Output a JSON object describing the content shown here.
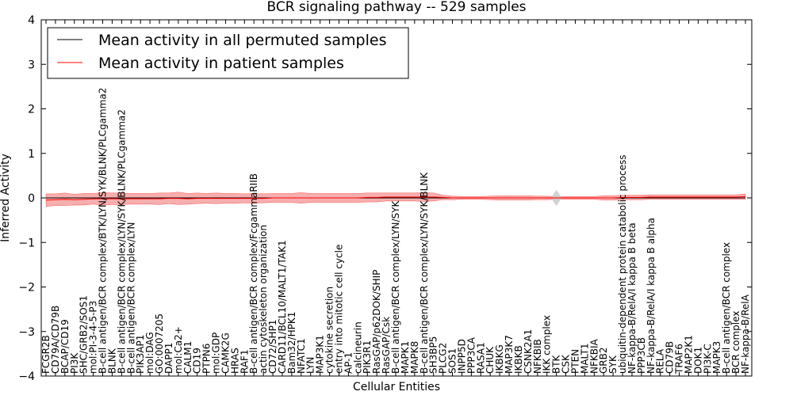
{
  "chart_data": {
    "type": "line",
    "title": "BCR signaling pathway -- 529 samples",
    "xlabel": "Cellular Entities",
    "ylabel": "Inferred Activity",
    "ylim": [
      -4,
      4
    ],
    "yticks": [
      "4",
      "3",
      "2",
      "1",
      "0",
      "−1",
      "−2",
      "−3",
      "−4"
    ],
    "grid": false,
    "legend_position": "top-left",
    "colors": {
      "permuted": "#000000",
      "patient": "#ff0000",
      "patient_band": "#f4a0a0",
      "permuted_band": "#c8c8c8"
    },
    "categories": [
      "FCGR2B",
      "CD79A/CD79B",
      "BCAP/CD19",
      "PI3K",
      "SHC/GRB2/SOS1",
      "mol:PI-3-4-5-P3",
      "B-cell antigen/BCR complex/BTK/LYN/SYK/BLNK/PLCgamma2",
      "BLNK",
      "B-cell antigen/BCR complex/LYN/SYK/BLNK/PLCgamma2",
      "B-cell antigen/BCR complex/LYN",
      "PIK3AP1",
      "mol:DAG",
      "GO:0007205",
      "DAPP1",
      "mol:Ca2+",
      "CALM1",
      "CD19",
      "PTPN6",
      "mol:GDP",
      "CAMK2G",
      "HRAS",
      "RAF1",
      "B-cell antigen/BCR complex/FcgammaRIIB",
      "actin cytoskeleton organization",
      "CD72/SHP1",
      "CARD11/BCL10/MALT1/TAK1",
      "Bam32/HPK1",
      "NFATC1",
      "LYN",
      "MAP3K1",
      "cytokine secretion",
      "entry into mitotic cell cycle",
      "AP-1",
      "calcineurin",
      "PIK3R1",
      "RasGAP/p62DOK/SHIP",
      "RasGAP/Csk",
      "B-cell antigen/BCR complex/LYN/SYK",
      "MAPK1",
      "MAPK8",
      "B-cell antigen/BCR complex/LYN/SYK/BLNK",
      "SH3BP5",
      "PLCG2",
      "SOS1",
      "INPP5D",
      "PPP3CA",
      "RASA1",
      "CHUK",
      "IKBKG",
      "MAP3K7",
      "IKBKB",
      "CSNK2A1",
      "NFKBIB",
      "IKK complex",
      "BTK",
      "CSK",
      "PTEN",
      "MALT1",
      "NFKBIA",
      "GRB2",
      "SYK",
      "ubiquitin-dependent protein catabolic process",
      "NF-kappa-B/RelA/I kappa B beta",
      "PPP3CB",
      "NF-kappa-B/RelA/I kappa B alpha",
      "RELA",
      "CD79B",
      "TRAF6",
      "MAP2K1",
      "DOK1",
      "PI3K-C",
      "MAPK3",
      "B-cell antigen/BCR complex",
      "BCR complex",
      "NF-kappa-B/RelA"
    ],
    "series": [
      {
        "name": "Mean activity in all permuted samples",
        "values": [
          0,
          0,
          0,
          0,
          0,
          0,
          0,
          0,
          0,
          0,
          0,
          0,
          0,
          0,
          0,
          0,
          0,
          0,
          0,
          0,
          0,
          0,
          0,
          0,
          0,
          0,
          0,
          0,
          0,
          0,
          0,
          0,
          0,
          0,
          0,
          0,
          0,
          0,
          0,
          0,
          0,
          0,
          0,
          0,
          0,
          0,
          0,
          0,
          0,
          0,
          0,
          0,
          0,
          0,
          0,
          0,
          0,
          0,
          0,
          0,
          0,
          0,
          0,
          0,
          0,
          0,
          0,
          0,
          0,
          0,
          0,
          0,
          0,
          0,
          0
        ]
      },
      {
        "name": "Mean activity in patient samples",
        "values": [
          -0.05,
          -0.04,
          -0.03,
          -0.04,
          -0.03,
          -0.02,
          -0.02,
          -0.02,
          -0.02,
          -0.02,
          -0.02,
          -0.02,
          -0.02,
          -0.01,
          -0.01,
          -0.02,
          -0.01,
          -0.01,
          -0.01,
          -0.01,
          -0.01,
          -0.01,
          -0.01,
          -0.01,
          0.0,
          0.0,
          0.0,
          0.0,
          0.0,
          0.0,
          0.0,
          0.0,
          0.0,
          0.0,
          0.01,
          0.01,
          0.02,
          0.02,
          0.02,
          0.02,
          0.02,
          0.02,
          0.01,
          0.0,
          0.0,
          0.0,
          0.0,
          0.0,
          0.0,
          0.0,
          0.0,
          0.0,
          0.0,
          0.0,
          0.0,
          0.0,
          0.0,
          0.0,
          0.0,
          0.0,
          0.0,
          0.01,
          0.01,
          0.01,
          0.02,
          0.02,
          0.02,
          0.02,
          0.02,
          0.02,
          0.02,
          0.02,
          0.02,
          0.02,
          0.03
        ]
      }
    ],
    "patient_spread": [
      0.14,
      0.13,
      0.14,
      0.12,
      0.13,
      0.12,
      0.14,
      0.13,
      0.13,
      0.12,
      0.12,
      0.12,
      0.13,
      0.12,
      0.14,
      0.12,
      0.12,
      0.11,
      0.12,
      0.11,
      0.11,
      0.1,
      0.11,
      0.1,
      0.1,
      0.1,
      0.1,
      0.12,
      0.1,
      0.1,
      0.1,
      0.1,
      0.1,
      0.1,
      0.1,
      0.1,
      0.09,
      0.09,
      0.09,
      0.09,
      0.1,
      0.09,
      0.05,
      0.04,
      0.03,
      0.03,
      0.03,
      0.04,
      0.05,
      0.05,
      0.05,
      0.05,
      0.04,
      0.04,
      0.03,
      0.03,
      0.03,
      0.03,
      0.03,
      0.05,
      0.05,
      0.05,
      0.05,
      0.05,
      0.05,
      0.05,
      0.05,
      0.05,
      0.05,
      0.05,
      0.05,
      0.05,
      0.05,
      0.05,
      0.06
    ],
    "permuted_spread_peak": {
      "category": "BTK",
      "value": 0.18
    }
  }
}
